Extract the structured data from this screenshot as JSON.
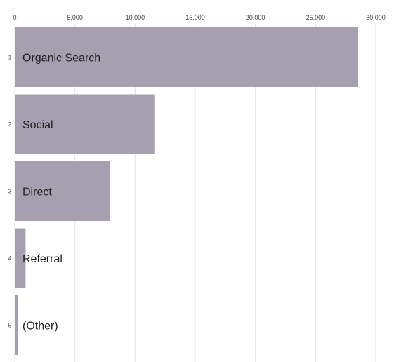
{
  "chart_data": {
    "type": "bar",
    "orientation": "horizontal",
    "categories": [
      "Organic Search",
      "Social",
      "Direct",
      "Referral",
      "(Other)"
    ],
    "ranks": [
      "1",
      "2",
      "3",
      "4",
      "5"
    ],
    "values": [
      28500,
      11600,
      7900,
      900,
      250
    ],
    "xlim": [
      0,
      30000
    ],
    "ticks": [
      0,
      5000,
      10000,
      15000,
      20000,
      25000,
      30000
    ],
    "tick_labels": [
      "0",
      "5,000",
      "10,000",
      "15,000",
      "20,000",
      "25,000",
      "30,000"
    ],
    "x_axis_position": "top",
    "grid": true,
    "legend": "none",
    "bar_color": "#a59fb0",
    "title": "",
    "xlabel": "",
    "ylabel": ""
  }
}
